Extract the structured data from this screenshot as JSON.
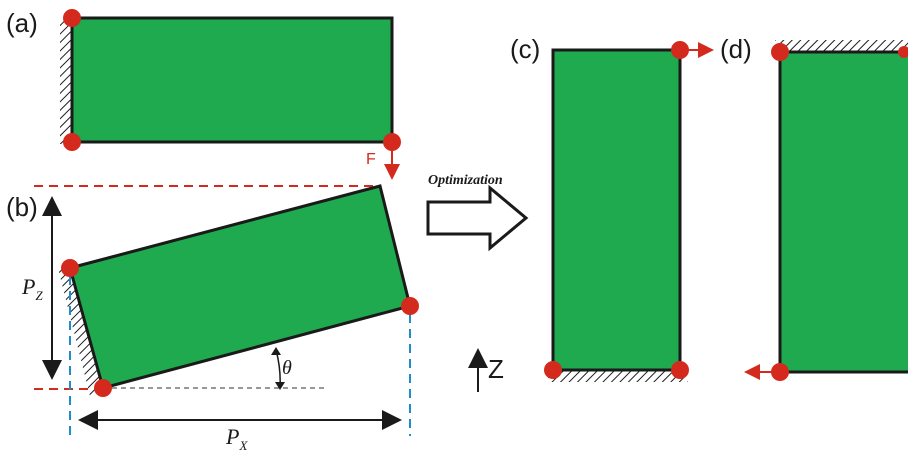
{
  "panels": {
    "a": {
      "label": "(a)",
      "force_label": "F"
    },
    "b": {
      "label": "(b)",
      "pz_main": "P",
      "pz_sub": "Z",
      "px_main": "P",
      "px_sub": "X",
      "angle": "θ"
    },
    "c": {
      "label": "(c)"
    },
    "d": {
      "label": "(d)"
    }
  },
  "arrow_caption": "Optimization",
  "axis_label": "Z",
  "colors": {
    "fill": "#1faa4f",
    "node": "#d42a1e",
    "outline": "#1a1a1a",
    "dash_red": "#d42a1e",
    "dash_blue": "#1c8fc8",
    "dash_grey": "#777777"
  }
}
